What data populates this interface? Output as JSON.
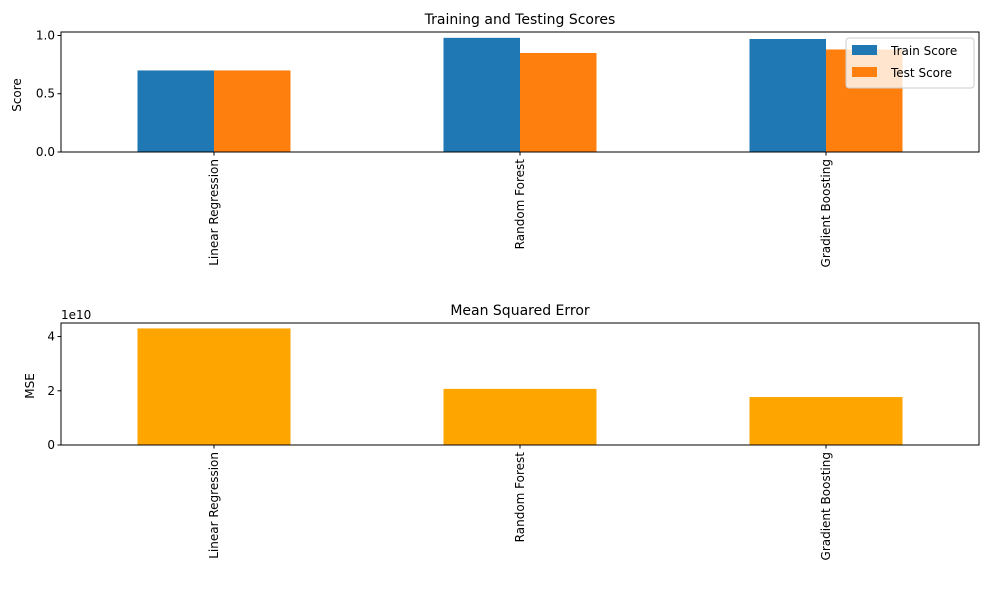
{
  "chart_data": [
    {
      "type": "bar",
      "title": "Training and Testing Scores",
      "xlabel": "",
      "ylabel": "Score",
      "categories": [
        "Linear Regression",
        "Random Forest",
        "Gradient Boosting"
      ],
      "series": [
        {
          "name": "Train Score",
          "color": "#1f77b4",
          "values": [
            0.7,
            0.98,
            0.97
          ]
        },
        {
          "name": "Test Score",
          "color": "#ff7f0e",
          "values": [
            0.7,
            0.85,
            0.88
          ]
        }
      ],
      "ylim": [
        0,
        1.03
      ],
      "yticks": [
        0.0,
        0.5,
        1.0
      ],
      "ytick_labels": [
        "0.0",
        "0.5",
        "1.0"
      ],
      "legend": "top-right",
      "grid": false
    },
    {
      "type": "bar",
      "title": "Mean Squared Error",
      "xlabel": "",
      "ylabel": "MSE",
      "offset_text": "1e10",
      "categories": [
        "Linear Regression",
        "Random Forest",
        "Gradient Boosting"
      ],
      "series": [
        {
          "color": "#ffa500",
          "values": [
            43000000000.0,
            20700000000.0,
            17700000000.0
          ]
        }
      ],
      "ylim": [
        0,
        45000000000.0
      ],
      "yticks": [
        0,
        20000000000.0,
        40000000000.0
      ],
      "ytick_labels": [
        "0",
        "2",
        "4"
      ],
      "grid": false
    }
  ]
}
